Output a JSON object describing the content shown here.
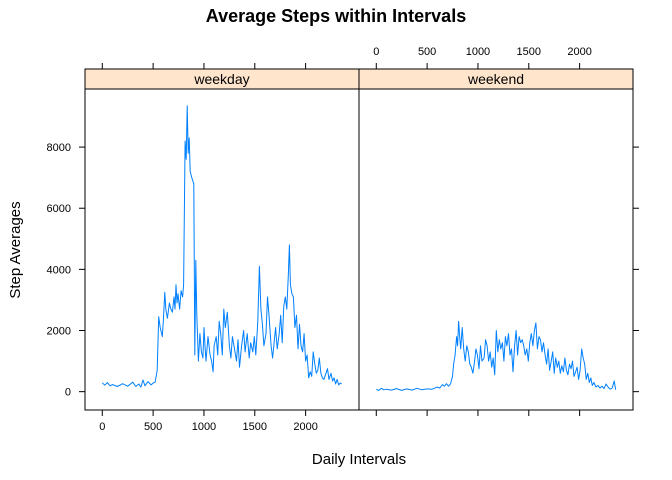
{
  "chart_data": {
    "type": "line",
    "title": "Average Steps within Intervals",
    "xlabel": "Daily Intervals",
    "ylabel": "Step Averages",
    "xlim": [
      -170,
      2525
    ],
    "ylim": [
      -600,
      9900
    ],
    "x_ticks": [
      0,
      500,
      1000,
      1500,
      2000
    ],
    "y_ticks": [
      0,
      2000,
      4000,
      6000,
      8000
    ],
    "series_color": "#0080ff",
    "strip_color": "#ffe5cc",
    "panels": [
      {
        "name": "weekday",
        "points": [
          [
            0,
            290
          ],
          [
            25,
            210
          ],
          [
            50,
            300
          ],
          [
            75,
            190
          ],
          [
            100,
            230
          ],
          [
            150,
            170
          ],
          [
            200,
            260
          ],
          [
            250,
            180
          ],
          [
            300,
            310
          ],
          [
            330,
            170
          ],
          [
            360,
            250
          ],
          [
            380,
            150
          ],
          [
            400,
            380
          ],
          [
            420,
            190
          ],
          [
            450,
            330
          ],
          [
            480,
            220
          ],
          [
            500,
            280
          ],
          [
            520,
            320
          ],
          [
            540,
            700
          ],
          [
            555,
            2450
          ],
          [
            570,
            2100
          ],
          [
            590,
            1800
          ],
          [
            600,
            2300
          ],
          [
            615,
            3250
          ],
          [
            625,
            2700
          ],
          [
            640,
            2400
          ],
          [
            660,
            2900
          ],
          [
            675,
            2700
          ],
          [
            690,
            2600
          ],
          [
            705,
            3100
          ],
          [
            715,
            2700
          ],
          [
            725,
            3500
          ],
          [
            735,
            2900
          ],
          [
            745,
            3200
          ],
          [
            760,
            2700
          ],
          [
            775,
            3300
          ],
          [
            790,
            3100
          ],
          [
            800,
            3500
          ],
          [
            815,
            8200
          ],
          [
            825,
            7600
          ],
          [
            835,
            9350
          ],
          [
            845,
            7800
          ],
          [
            855,
            8300
          ],
          [
            865,
            7200
          ],
          [
            880,
            7000
          ],
          [
            900,
            6800
          ],
          [
            910,
            1200
          ],
          [
            920,
            4300
          ],
          [
            930,
            2500
          ],
          [
            945,
            1000
          ],
          [
            960,
            1900
          ],
          [
            975,
            1300
          ],
          [
            990,
            1100
          ],
          [
            1000,
            2100
          ],
          [
            1010,
            1500
          ],
          [
            1020,
            1000
          ],
          [
            1040,
            1800
          ],
          [
            1060,
            1200
          ],
          [
            1075,
            1000
          ],
          [
            1090,
            650
          ],
          [
            1100,
            1500
          ],
          [
            1120,
            1800
          ],
          [
            1135,
            1200
          ],
          [
            1150,
            2300
          ],
          [
            1165,
            1900
          ],
          [
            1180,
            1200
          ],
          [
            1195,
            2700
          ],
          [
            1210,
            2100
          ],
          [
            1230,
            2600
          ],
          [
            1250,
            1500
          ],
          [
            1265,
            1100
          ],
          [
            1280,
            1800
          ],
          [
            1300,
            1400
          ],
          [
            1320,
            1000
          ],
          [
            1335,
            1700
          ],
          [
            1350,
            800
          ],
          [
            1370,
            1500
          ],
          [
            1390,
            2000
          ],
          [
            1405,
            1300
          ],
          [
            1425,
            1900
          ],
          [
            1445,
            1100
          ],
          [
            1460,
            1600
          ],
          [
            1480,
            1300
          ],
          [
            1495,
            1800
          ],
          [
            1510,
            1200
          ],
          [
            1530,
            2300
          ],
          [
            1545,
            4100
          ],
          [
            1560,
            2700
          ],
          [
            1575,
            2200
          ],
          [
            1590,
            1500
          ],
          [
            1610,
            1900
          ],
          [
            1625,
            3100
          ],
          [
            1640,
            2500
          ],
          [
            1660,
            1500
          ],
          [
            1675,
            1100
          ],
          [
            1690,
            1600
          ],
          [
            1705,
            2100
          ],
          [
            1720,
            1400
          ],
          [
            1740,
            1900
          ],
          [
            1755,
            2500
          ],
          [
            1770,
            1600
          ],
          [
            1785,
            2800
          ],
          [
            1800,
            3100
          ],
          [
            1815,
            2700
          ],
          [
            1830,
            3800
          ],
          [
            1840,
            4800
          ],
          [
            1850,
            3500
          ],
          [
            1865,
            3200
          ],
          [
            1880,
            3100
          ],
          [
            1895,
            2100
          ],
          [
            1910,
            2500
          ],
          [
            1925,
            1400
          ],
          [
            1940,
            2200
          ],
          [
            1955,
            1500
          ],
          [
            1970,
            1300
          ],
          [
            1985,
            1900
          ],
          [
            2000,
            1000
          ],
          [
            2015,
            1200
          ],
          [
            2030,
            450
          ],
          [
            2045,
            650
          ],
          [
            2060,
            500
          ],
          [
            2075,
            1300
          ],
          [
            2090,
            900
          ],
          [
            2105,
            600
          ],
          [
            2120,
            700
          ],
          [
            2135,
            1100
          ],
          [
            2150,
            600
          ],
          [
            2165,
            450
          ],
          [
            2180,
            400
          ],
          [
            2200,
            600
          ],
          [
            2215,
            750
          ],
          [
            2230,
            400
          ],
          [
            2250,
            600
          ],
          [
            2265,
            350
          ],
          [
            2280,
            450
          ],
          [
            2295,
            250
          ],
          [
            2310,
            400
          ],
          [
            2325,
            220
          ],
          [
            2340,
            280
          ],
          [
            2355,
            250
          ]
        ]
      },
      {
        "name": "weekend",
        "points": [
          [
            0,
            70
          ],
          [
            25,
            40
          ],
          [
            50,
            110
          ],
          [
            75,
            60
          ],
          [
            100,
            80
          ],
          [
            150,
            50
          ],
          [
            200,
            100
          ],
          [
            250,
            40
          ],
          [
            300,
            90
          ],
          [
            350,
            50
          ],
          [
            400,
            110
          ],
          [
            450,
            60
          ],
          [
            500,
            90
          ],
          [
            550,
            80
          ],
          [
            600,
            150
          ],
          [
            625,
            120
          ],
          [
            650,
            230
          ],
          [
            670,
            180
          ],
          [
            690,
            260
          ],
          [
            710,
            180
          ],
          [
            730,
            250
          ],
          [
            750,
            500
          ],
          [
            760,
            900
          ],
          [
            775,
            1200
          ],
          [
            790,
            1800
          ],
          [
            800,
            1500
          ],
          [
            810,
            2300
          ],
          [
            820,
            1800
          ],
          [
            830,
            1400
          ],
          [
            845,
            2100
          ],
          [
            860,
            1400
          ],
          [
            875,
            1000
          ],
          [
            890,
            1500
          ],
          [
            905,
            1300
          ],
          [
            920,
            900
          ],
          [
            935,
            800
          ],
          [
            950,
            600
          ],
          [
            965,
            950
          ],
          [
            980,
            1400
          ],
          [
            995,
            1200
          ],
          [
            1010,
            750
          ],
          [
            1025,
            1500
          ],
          [
            1040,
            1000
          ],
          [
            1060,
            1100
          ],
          [
            1075,
            1700
          ],
          [
            1090,
            1500
          ],
          [
            1105,
            1000
          ],
          [
            1120,
            1300
          ],
          [
            1135,
            800
          ],
          [
            1150,
            1100
          ],
          [
            1165,
            550
          ],
          [
            1180,
            2000
          ],
          [
            1195,
            1300
          ],
          [
            1210,
            1700
          ],
          [
            1225,
            1400
          ],
          [
            1240,
            1600
          ],
          [
            1255,
            1000
          ],
          [
            1270,
            1800
          ],
          [
            1285,
            1500
          ],
          [
            1300,
            1900
          ],
          [
            1315,
            1200
          ],
          [
            1330,
            1400
          ],
          [
            1345,
            650
          ],
          [
            1360,
            1500
          ],
          [
            1375,
            2000
          ],
          [
            1390,
            1200
          ],
          [
            1405,
            1800
          ],
          [
            1420,
            1600
          ],
          [
            1435,
            1700
          ],
          [
            1450,
            1500
          ],
          [
            1465,
            1200
          ],
          [
            1480,
            1400
          ],
          [
            1495,
            1000
          ],
          [
            1510,
            1600
          ],
          [
            1525,
            1900
          ],
          [
            1540,
            1500
          ],
          [
            1555,
            2000
          ],
          [
            1570,
            2250
          ],
          [
            1585,
            1400
          ],
          [
            1600,
            1800
          ],
          [
            1615,
            1700
          ],
          [
            1630,
            1300
          ],
          [
            1645,
            1600
          ],
          [
            1660,
            1200
          ],
          [
            1675,
            900
          ],
          [
            1690,
            1400
          ],
          [
            1705,
            700
          ],
          [
            1720,
            1000
          ],
          [
            1735,
            1300
          ],
          [
            1750,
            600
          ],
          [
            1765,
            1100
          ],
          [
            1780,
            800
          ],
          [
            1795,
            1000
          ],
          [
            1810,
            600
          ],
          [
            1825,
            850
          ],
          [
            1840,
            650
          ],
          [
            1855,
            1100
          ],
          [
            1870,
            700
          ],
          [
            1885,
            550
          ],
          [
            1900,
            900
          ],
          [
            1915,
            750
          ],
          [
            1930,
            1000
          ],
          [
            1945,
            500
          ],
          [
            1960,
            650
          ],
          [
            1975,
            800
          ],
          [
            1990,
            400
          ],
          [
            2005,
            700
          ],
          [
            2020,
            1400
          ],
          [
            2035,
            1100
          ],
          [
            2050,
            900
          ],
          [
            2065,
            400
          ],
          [
            2080,
            600
          ],
          [
            2095,
            300
          ],
          [
            2110,
            450
          ],
          [
            2125,
            200
          ],
          [
            2140,
            300
          ],
          [
            2160,
            150
          ],
          [
            2180,
            200
          ],
          [
            2200,
            120
          ],
          [
            2220,
            180
          ],
          [
            2240,
            100
          ],
          [
            2260,
            250
          ],
          [
            2280,
            150
          ],
          [
            2300,
            80
          ],
          [
            2320,
            120
          ],
          [
            2340,
            350
          ],
          [
            2355,
            60
          ]
        ]
      }
    ]
  }
}
